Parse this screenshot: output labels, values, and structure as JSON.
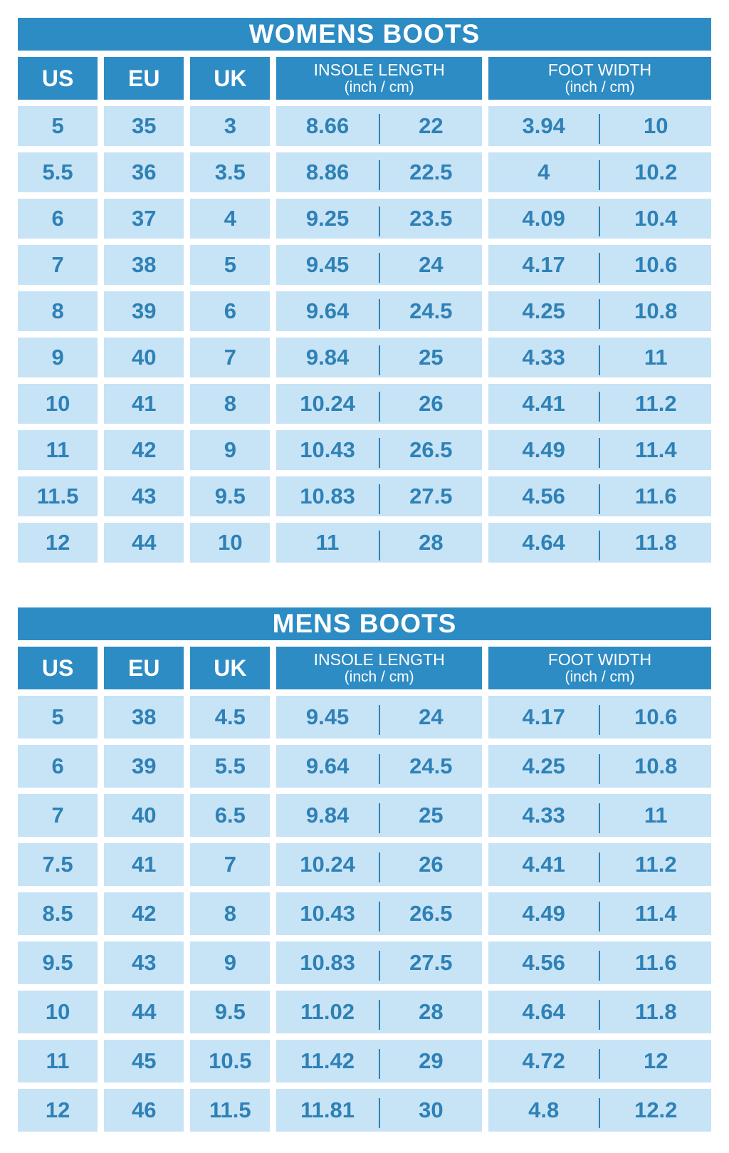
{
  "colors": {
    "header_blue": "#2D8CC4",
    "cell_blue": "#C7E3F6",
    "text_blue": "#2E81B6",
    "background": "#FFFFFF"
  },
  "chart_data": [
    {
      "type": "table",
      "title": "WOMENS BOOTS",
      "columns": [
        "US",
        "EU",
        "UK",
        "INSOLE LENGTH (inch / cm)",
        "FOOT WIDTH (inch / cm)"
      ],
      "headers": {
        "us": "US",
        "eu": "EU",
        "uk": "UK",
        "insole_length": "INSOLE LENGTH",
        "insole_unit": "(inch / cm)",
        "foot_width": "FOOT WIDTH",
        "foot_unit": "(inch / cm)"
      },
      "rows": [
        [
          "5",
          "35",
          "3",
          "8.66",
          "22",
          "3.94",
          "10"
        ],
        [
          "5.5",
          "36",
          "3.5",
          "8.86",
          "22.5",
          "4",
          "10.2"
        ],
        [
          "6",
          "37",
          "4",
          "9.25",
          "23.5",
          "4.09",
          "10.4"
        ],
        [
          "7",
          "38",
          "5",
          "9.45",
          "24",
          "4.17",
          "10.6"
        ],
        [
          "8",
          "39",
          "6",
          "9.64",
          "24.5",
          "4.25",
          "10.8"
        ],
        [
          "9",
          "40",
          "7",
          "9.84",
          "25",
          "4.33",
          "11"
        ],
        [
          "10",
          "41",
          "8",
          "10.24",
          "26",
          "4.41",
          "11.2"
        ],
        [
          "11",
          "42",
          "9",
          "10.43",
          "26.5",
          "4.49",
          "11.4"
        ],
        [
          "11.5",
          "43",
          "9.5",
          "10.83",
          "27.5",
          "4.56",
          "11.6"
        ],
        [
          "12",
          "44",
          "10",
          "11",
          "28",
          "4.64",
          "11.8"
        ]
      ]
    },
    {
      "type": "table",
      "title": "MENS BOOTS",
      "columns": [
        "US",
        "EU",
        "UK",
        "INSOLE LENGTH (inch / cm)",
        "FOOT WIDTH (inch / cm)"
      ],
      "headers": {
        "us": "US",
        "eu": "EU",
        "uk": "UK",
        "insole_length": "INSOLE LENGTH",
        "insole_unit": "(inch / cm)",
        "foot_width": "FOOT WIDTH",
        "foot_unit": "(inch / cm)"
      },
      "rows": [
        [
          "5",
          "38",
          "4.5",
          "9.45",
          "24",
          "4.17",
          "10.6"
        ],
        [
          "6",
          "39",
          "5.5",
          "9.64",
          "24.5",
          "4.25",
          "10.8"
        ],
        [
          "7",
          "40",
          "6.5",
          "9.84",
          "25",
          "4.33",
          "11"
        ],
        [
          "7.5",
          "41",
          "7",
          "10.24",
          "26",
          "4.41",
          "11.2"
        ],
        [
          "8.5",
          "42",
          "8",
          "10.43",
          "26.5",
          "4.49",
          "11.4"
        ],
        [
          "9.5",
          "43",
          "9",
          "10.83",
          "27.5",
          "4.56",
          "11.6"
        ],
        [
          "10",
          "44",
          "9.5",
          "11.02",
          "28",
          "4.64",
          "11.8"
        ],
        [
          "11",
          "45",
          "10.5",
          "11.42",
          "29",
          "4.72",
          "12"
        ],
        [
          "12",
          "46",
          "11.5",
          "11.81",
          "30",
          "4.8",
          "12.2"
        ]
      ]
    }
  ]
}
